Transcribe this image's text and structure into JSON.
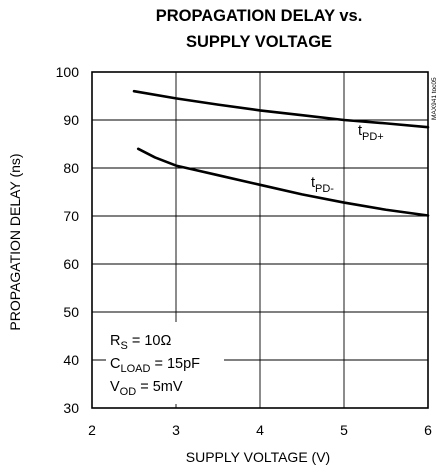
{
  "chart_data": {
    "type": "line",
    "title_line1": "PROPAGATION DELAY vs.",
    "title_line2": "SUPPLY VOLTAGE",
    "xlabel": "SUPPLY VOLTAGE (V)",
    "ylabel": "PROPAGATION DELAY (ns)",
    "xlim": [
      2,
      6
    ],
    "ylim": [
      30,
      100
    ],
    "xticks": [
      2,
      3,
      4,
      5,
      6
    ],
    "yticks": [
      30,
      40,
      50,
      60,
      70,
      80,
      90,
      100
    ],
    "grid": true,
    "side_code": "MAX941 toc05",
    "series": [
      {
        "name": "tPD+",
        "label_main": "t",
        "label_sub": "PD+",
        "x": [
          2.5,
          3.0,
          3.5,
          4.0,
          4.5,
          5.0,
          5.5,
          6.0
        ],
        "y": [
          96,
          94.5,
          93.2,
          92,
          91,
          90,
          89.3,
          88.5
        ]
      },
      {
        "name": "tPD-",
        "label_main": "t",
        "label_sub": "PD-",
        "x": [
          2.55,
          2.75,
          3.0,
          3.25,
          3.5,
          4.0,
          4.5,
          5.0,
          5.5,
          6.0
        ],
        "y": [
          84,
          82.2,
          80.5,
          79.5,
          78.5,
          76.5,
          74.5,
          72.8,
          71.3,
          70.1
        ]
      }
    ],
    "conditions": [
      {
        "main": "R",
        "sub": "S",
        "rest": " = 10Ω"
      },
      {
        "main": "C",
        "sub": "LOAD",
        "rest": " = 15pF"
      },
      {
        "main": "V",
        "sub": "OD",
        "rest": " = 5mV"
      }
    ]
  }
}
